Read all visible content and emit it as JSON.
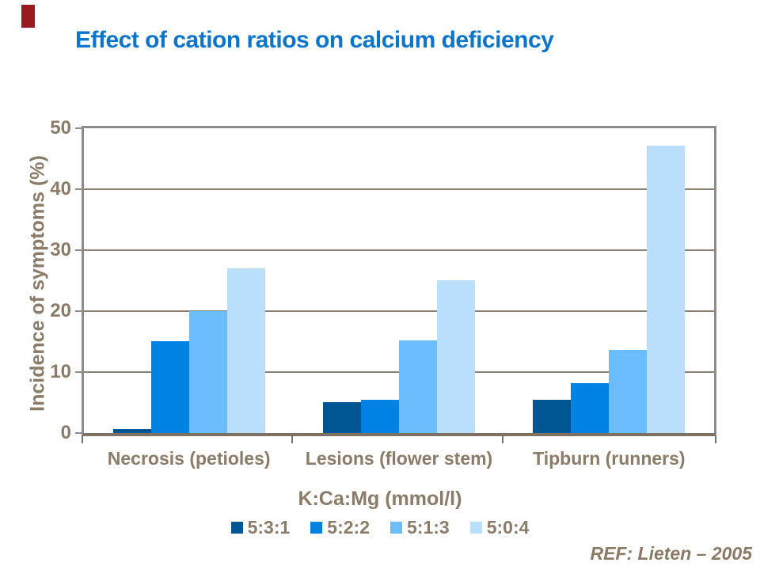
{
  "slide": {
    "title": "Effect of cation ratios on calcium deficiency",
    "reference": "REF: Lieten – 2005"
  },
  "colors": {
    "title_text": "#0B74CB",
    "axis_text": "#8A7C68",
    "frame": "#8C8C8C",
    "gridline": "#8B8173",
    "baseline": "#7D7163",
    "accent_mark": "#9A1B1F",
    "series": [
      "#005593",
      "#0082E4",
      "#6BBDFE",
      "#BADFFD"
    ]
  },
  "chart_data": {
    "type": "bar",
    "title": "Effect of cation ratios on calcium deficiency",
    "categories": [
      "Necrosis (petioles)",
      "Lesions (flower stem)",
      "Tipburn (runners)"
    ],
    "series": [
      {
        "name": "5:3:1",
        "values": [
          0.6,
          5.0,
          5.5
        ]
      },
      {
        "name": "5:2:2",
        "values": [
          15.0,
          5.5,
          8.2
        ]
      },
      {
        "name": "5:1:3",
        "values": [
          20.0,
          15.2,
          13.7
        ]
      },
      {
        "name": "5:0:4",
        "values": [
          27.0,
          25.0,
          47.2
        ]
      }
    ],
    "xlabel": "K:Ca:Mg (mmol/l)",
    "ylabel": "Incidence of symptoms (%)",
    "ylim": [
      0,
      50
    ],
    "yticks": [
      0,
      10,
      20,
      30,
      40,
      50
    ],
    "grid": true,
    "legend_position": "bottom"
  }
}
